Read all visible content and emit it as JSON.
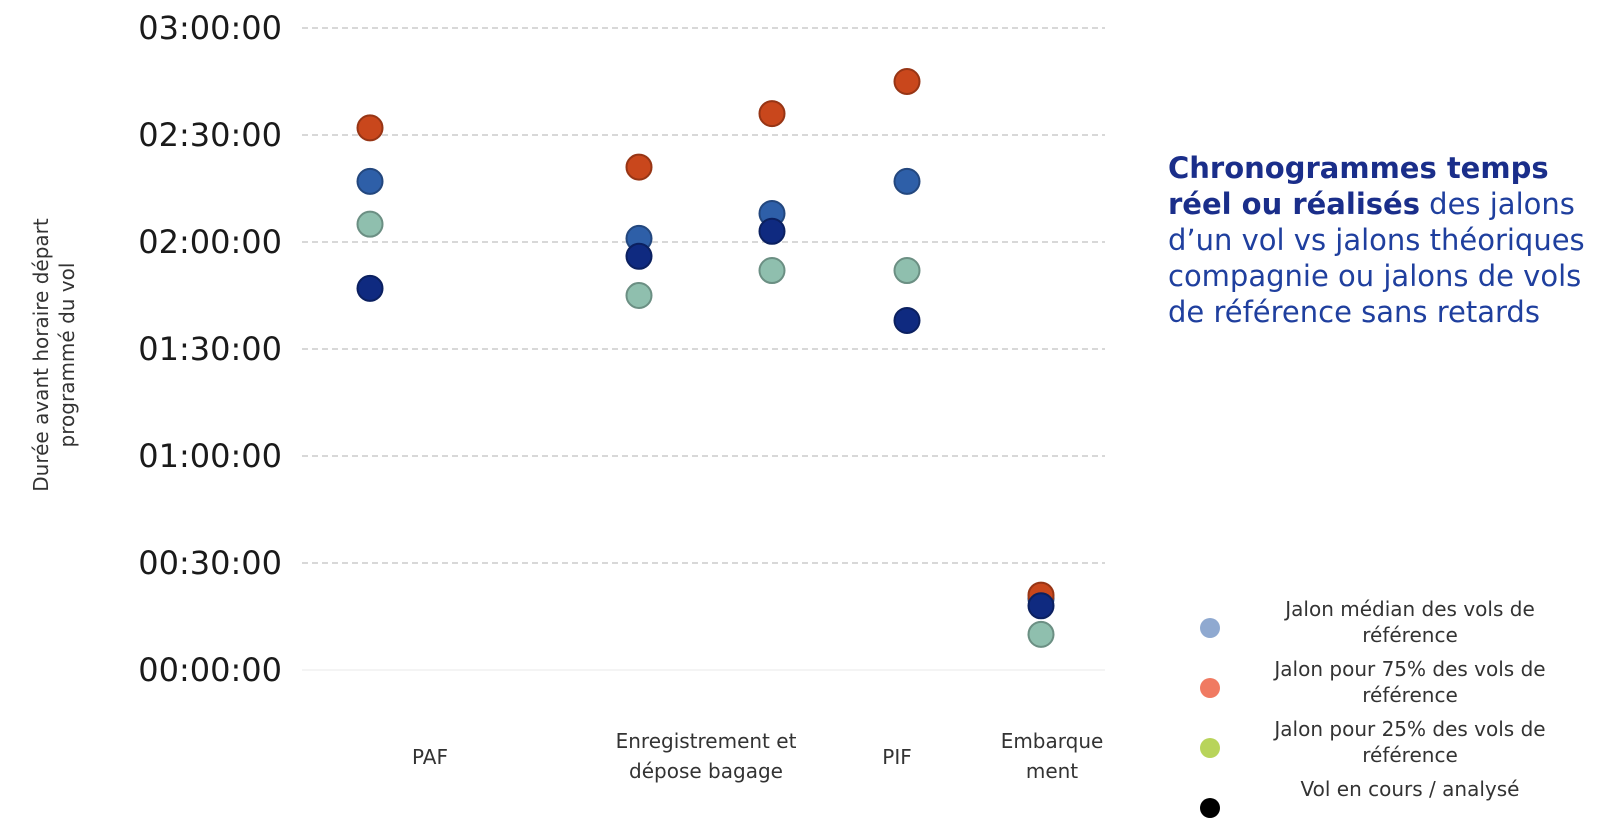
{
  "chart_data": {
    "type": "scatter",
    "title": "",
    "xlabel": "",
    "ylabel": "Durée avant horaire départ programmé du vol",
    "y_unit": "HH:MM:SS",
    "y_ticks": [
      "00:00:00",
      "00:30:00",
      "01:00:00",
      "01:30:00",
      "02:00:00",
      "02:30:00",
      "03:00:00"
    ],
    "ylim": [
      "00:00:00",
      "03:00:00"
    ],
    "grid": true,
    "legend_position": "bottom-right",
    "categories": [
      {
        "label": "PAF",
        "x": "PAF"
      },
      {
        "label": "Enregistrement et\ndépose bagage",
        "x": "Enregistrement et dépose bagage"
      },
      {
        "label": "PIF",
        "x": "PIF"
      },
      {
        "label": "Embarque\nment",
        "x": "Embarquement"
      }
    ],
    "columns": [
      {
        "label": "PAF"
      },
      {
        "label": "Enregistrement et dépose bagage (1)"
      },
      {
        "label": "Enregistrement et dépose bagage (2)"
      },
      {
        "label": "PIF"
      },
      {
        "label": "Embarquement"
      }
    ],
    "series": [
      {
        "name": "Jalon médian des vols de référence",
        "color": "#2e5fa8",
        "legend_color": "#8fa9d0",
        "values": [
          "02:17:00",
          "02:01:00",
          "02:08:00",
          "02:17:00",
          "00:20:00"
        ]
      },
      {
        "name": "Jalon pour 75% des vols de référence",
        "color": "#c9471c",
        "legend_color": "#f07a62",
        "values": [
          "02:32:00",
          "02:21:00",
          "02:36:00",
          "02:45:00",
          "00:21:00"
        ]
      },
      {
        "name": "Jalon pour 25% des vols de référence",
        "color": "#8fbfae",
        "legend_color": "#b8d45a",
        "values": [
          "02:05:00",
          "01:45:00",
          "01:52:00",
          "01:52:00",
          "00:10:00"
        ]
      },
      {
        "name": "Vol en cours / analysé",
        "color": "#0f2a80",
        "legend_color": "#000000",
        "values": [
          "01:47:00",
          "01:56:00",
          "02:03:00",
          "01:38:00",
          "00:18:00"
        ]
      }
    ]
  },
  "annotation": {
    "bold": "Chronogrammes temps réel ou réalisés",
    "rest": " des jalons d’un vol vs jalons théoriques compagnie ou jalons de vols de référence sans retards"
  },
  "legend": [
    {
      "label": "Jalon médian des vols de référence",
      "color": "#8fa9d0"
    },
    {
      "label": "Jalon pour 75% des vols de référence",
      "color": "#f07a62"
    },
    {
      "label": "Jalon pour 25% des vols de référence",
      "color": "#b8d45a"
    },
    {
      "label": "Vol en cours / analysé",
      "color": "#000000"
    }
  ]
}
